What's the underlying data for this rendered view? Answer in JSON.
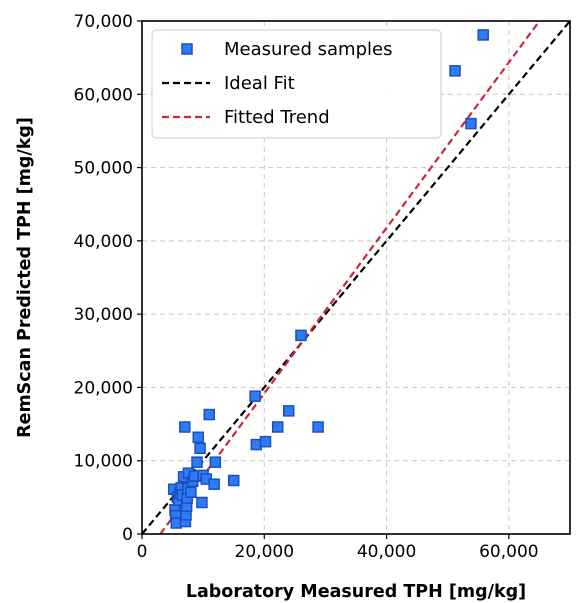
{
  "chart_data": {
    "type": "scatter",
    "title": "",
    "xlabel": "Laboratory Measured TPH [mg/kg]",
    "ylabel": "RemScan Predicted TPH [mg/kg]",
    "xlim": [
      0,
      70000
    ],
    "ylim": [
      0,
      70000
    ],
    "x_ticks": [
      0,
      20000,
      40000,
      60000
    ],
    "x_tick_labels": [
      "0",
      "20,000",
      "40,000",
      "60,000"
    ],
    "y_ticks": [
      0,
      10000,
      20000,
      30000,
      40000,
      50000,
      60000,
      70000
    ],
    "y_tick_labels": [
      "0",
      "10,000",
      "20,000",
      "30,000",
      "40,000",
      "50,000",
      "60,000",
      "70,000"
    ],
    "grid": true,
    "legend_position": "top-left",
    "series": [
      {
        "name": "Measured samples",
        "kind": "scatter",
        "marker": "square",
        "color": "#2f7bf5",
        "edge_color": "#1a4fc2",
        "points": [
          [
            5200,
            6100
          ],
          [
            5400,
            3300
          ],
          [
            5500,
            2500
          ],
          [
            5600,
            1500
          ],
          [
            5800,
            5000
          ],
          [
            6000,
            4600
          ],
          [
            6200,
            5600
          ],
          [
            6400,
            6300
          ],
          [
            6600,
            5300
          ],
          [
            6800,
            7800
          ],
          [
            7000,
            14600
          ],
          [
            7100,
            1700
          ],
          [
            7200,
            2600
          ],
          [
            7300,
            3800
          ],
          [
            7400,
            4900
          ],
          [
            7500,
            6200
          ],
          [
            7600,
            8300
          ],
          [
            8000,
            5700
          ],
          [
            8300,
            7200
          ],
          [
            8600,
            7900
          ],
          [
            9000,
            9800
          ],
          [
            9200,
            13200
          ],
          [
            9500,
            11700
          ],
          [
            9800,
            4300
          ],
          [
            10000,
            8000
          ],
          [
            10500,
            7500
          ],
          [
            11000,
            16300
          ],
          [
            11800,
            6800
          ],
          [
            12000,
            9800
          ],
          [
            15000,
            7300
          ],
          [
            18500,
            18800
          ],
          [
            18700,
            12200
          ],
          [
            20200,
            12600
          ],
          [
            22200,
            14600
          ],
          [
            24000,
            16800
          ],
          [
            26000,
            27100
          ],
          [
            28800,
            14600
          ],
          [
            51200,
            63200
          ],
          [
            53800,
            56000
          ],
          [
            55800,
            68100
          ]
        ]
      },
      {
        "name": "Ideal Fit",
        "kind": "line",
        "color": "#000000",
        "dash": "dashed",
        "points": [
          [
            0,
            0
          ],
          [
            70000,
            70000
          ]
        ]
      },
      {
        "name": "Fitted Trend",
        "kind": "line",
        "color": "#c8283a",
        "dash": "dashed",
        "points": [
          [
            3000,
            0
          ],
          [
            65000,
            70000
          ]
        ]
      }
    ]
  }
}
